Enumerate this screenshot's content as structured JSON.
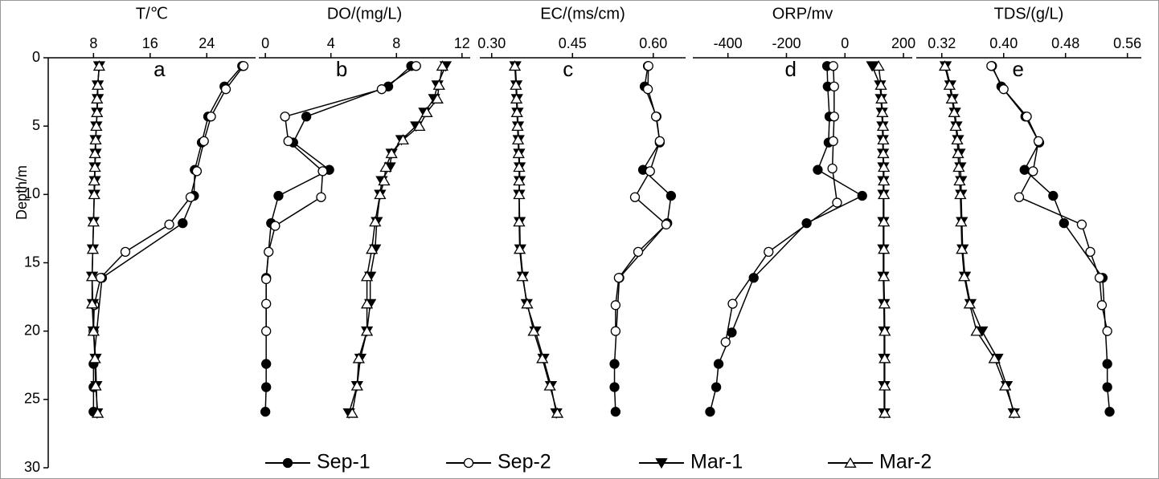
{
  "chart_data": [
    {
      "type": "line",
      "title": "T/℃",
      "annotation": "a",
      "xlim": [
        1.6,
        30.9
      ],
      "xticks": [
        8,
        16,
        24
      ],
      "ylabel": "Depth/m",
      "ylim": [
        0,
        30
      ],
      "yticks": [
        0,
        5,
        10,
        15,
        20,
        25,
        30
      ],
      "invert_y": true,
      "series": [
        {
          "name": "Sep-1",
          "color": "#000000",
          "marker": "filled-circle",
          "depths": [
            0.6,
            2.1,
            4.3,
            6.2,
            8.2,
            10.1,
            12.1,
            16.1,
            22.4,
            24.1,
            25.9
          ],
          "values": [
            29,
            26.5,
            24.2,
            23.3,
            22.3,
            22.2,
            20.6,
            9.2,
            8,
            8,
            8
          ]
        },
        {
          "name": "Sep-2",
          "color": "#000000",
          "marker": "open-circle",
          "depths": [
            0.6,
            2.3,
            4.3,
            6.1,
            8.3,
            10.2,
            12.2,
            14.2,
            16.1,
            18.1,
            20
          ],
          "values": [
            29.2,
            26.7,
            24.6,
            23.6,
            22.6,
            21.7,
            18.7,
            12.5,
            9,
            8.1,
            8
          ]
        },
        {
          "name": "Mar-1",
          "color": "#000000",
          "marker": "filled-triangle-down",
          "depths": [
            0.6,
            2,
            3,
            4,
            5,
            6,
            7,
            8,
            9,
            10,
            12,
            14,
            16,
            18,
            20,
            22,
            24,
            26
          ],
          "values": [
            8.8,
            8.6,
            8.6,
            8.5,
            8.4,
            8.3,
            8.3,
            8.2,
            8.2,
            8.1,
            8,
            7.9,
            7.8,
            7.9,
            8,
            8.3,
            8.4,
            8.5
          ]
        },
        {
          "name": "Mar-2",
          "color": "#000000",
          "marker": "open-triangle-up",
          "depths": [
            0.6,
            2,
            3,
            4,
            5,
            6,
            7,
            8,
            9,
            10,
            12,
            14,
            16,
            18,
            20,
            22,
            24,
            26
          ],
          "values": [
            8.8,
            8.6,
            8.5,
            8.5,
            8.4,
            8.3,
            8.2,
            8.2,
            8.1,
            8.1,
            8,
            7.9,
            7.8,
            7.8,
            8,
            8.2,
            8.3,
            8.6
          ]
        }
      ]
    },
    {
      "type": "line",
      "title": "DO/(mg/L)",
      "annotation": "b",
      "xlim": [
        -0.4,
        12.5
      ],
      "xticks": [
        0,
        4,
        8,
        12
      ],
      "ylim": [
        0,
        30
      ],
      "invert_y": true,
      "series": [
        {
          "name": "Sep-1",
          "color": "#000000",
          "marker": "filled-circle",
          "depths": [
            0.6,
            2.1,
            4.3,
            6.2,
            8.2,
            10.1,
            12.1,
            16.1,
            22.4,
            24.1,
            25.9
          ],
          "values": [
            8.9,
            7.5,
            2.5,
            1.7,
            3.9,
            0.8,
            0.35,
            0.05,
            0.05,
            0.05,
            0
          ]
        },
        {
          "name": "Sep-2",
          "color": "#000000",
          "marker": "open-circle",
          "depths": [
            0.6,
            2.3,
            4.3,
            6.1,
            8.3,
            10.2,
            12.3,
            14.2,
            16.2,
            18,
            20
          ],
          "values": [
            9.2,
            7.1,
            1.2,
            1.4,
            3.5,
            3.4,
            0.6,
            0.2,
            0.05,
            0.05,
            0.05
          ]
        },
        {
          "name": "Mar-1",
          "color": "#000000",
          "marker": "filled-triangle-down",
          "depths": [
            0.6,
            2,
            3,
            4,
            5,
            6,
            7,
            8,
            9,
            10,
            12,
            14,
            16,
            18,
            20,
            22,
            24,
            26
          ],
          "values": [
            11,
            10.5,
            10.3,
            9.7,
            9.2,
            8.3,
            7.7,
            7.6,
            7.1,
            7,
            6.8,
            6.7,
            6.4,
            6.4,
            6.2,
            5.8,
            5.6,
            5.1
          ]
        },
        {
          "name": "Mar-2",
          "color": "#000000",
          "marker": "open-triangle-up",
          "depths": [
            0.6,
            2,
            3,
            4,
            5,
            6,
            7,
            8,
            9,
            10,
            12,
            14,
            16,
            18,
            20,
            22,
            24,
            26
          ],
          "values": [
            10.8,
            10.6,
            10.5,
            9.85,
            9.4,
            8.4,
            7.7,
            7.35,
            7.25,
            7,
            6.7,
            6.5,
            6.2,
            6.2,
            6.2,
            5.7,
            5.6,
            5.3
          ]
        }
      ]
    },
    {
      "type": "line",
      "title": "EC/(ms/cm)",
      "annotation": "c",
      "xlim": [
        0.278,
        0.66
      ],
      "xticks": [
        {
          "value": 0.3,
          "label": "0.30"
        },
        {
          "value": 0.45,
          "label": "0.45"
        },
        {
          "value": 0.6,
          "label": "0.60"
        }
      ],
      "ylim": [
        0,
        30
      ],
      "invert_y": true,
      "series": [
        {
          "name": "Sep-1",
          "color": "#000000",
          "marker": "filled-circle",
          "depths": [
            0.6,
            2.1,
            4.3,
            6.2,
            8.2,
            10.1,
            12.1,
            16.1,
            22.4,
            24.1,
            25.9
          ],
          "values": [
            0.59,
            0.584,
            0.606,
            0.612,
            0.581,
            0.633,
            0.626,
            0.537,
            0.528,
            0.528,
            0.53
          ]
        },
        {
          "name": "Sep-2",
          "color": "#000000",
          "marker": "open-circle",
          "depths": [
            0.6,
            2.3,
            4.3,
            6.1,
            8.3,
            10.2,
            12.2,
            14.2,
            16.1,
            18.1,
            20
          ],
          "values": [
            0.591,
            0.59,
            0.605,
            0.612,
            0.594,
            0.566,
            0.624,
            0.572,
            0.536,
            0.53,
            0.53
          ]
        },
        {
          "name": "Mar-1",
          "color": "#000000",
          "marker": "filled-triangle-down",
          "depths": [
            0.6,
            2,
            3,
            4,
            5,
            6,
            7,
            8,
            9,
            10,
            12,
            14,
            16,
            18,
            20,
            22,
            24,
            26
          ],
          "values": [
            0.344,
            0.346,
            0.347,
            0.348,
            0.349,
            0.35,
            0.351,
            0.352,
            0.352,
            0.351,
            0.352,
            0.353,
            0.358,
            0.365,
            0.381,
            0.396,
            0.41,
            0.42
          ]
        },
        {
          "name": "Mar-2",
          "color": "#000000",
          "marker": "open-triangle-up",
          "depths": [
            0.6,
            2,
            3,
            4,
            5,
            6,
            7,
            8,
            9,
            10,
            12,
            14,
            16,
            18,
            20,
            22,
            24,
            26
          ],
          "values": [
            0.343,
            0.345,
            0.346,
            0.347,
            0.348,
            0.349,
            0.35,
            0.351,
            0.351,
            0.351,
            0.351,
            0.352,
            0.357,
            0.366,
            0.378,
            0.394,
            0.408,
            0.422
          ]
        }
      ]
    },
    {
      "type": "line",
      "title": "ORP/mv",
      "annotation": "d",
      "xlim": [
        -520,
        230
      ],
      "xticks": [
        -400,
        -200,
        0,
        200
      ],
      "ylim": [
        0,
        30
      ],
      "invert_y": true,
      "series": [
        {
          "name": "Sep-1",
          "color": "#000000",
          "marker": "filled-circle",
          "depths": [
            0.6,
            2.1,
            4.3,
            6.2,
            8.2,
            10.1,
            12.1,
            16.1,
            20.1,
            22.4,
            24.1,
            25.9
          ],
          "values": [
            -61,
            -59,
            -53,
            -56,
            -93,
            59,
            -131,
            -312,
            -387,
            -432,
            -440,
            -461
          ]
        },
        {
          "name": "Sep-2",
          "color": "#000000",
          "marker": "open-circle",
          "depths": [
            0.6,
            2.1,
            4.3,
            6.1,
            8.1,
            10.6,
            14.2,
            18,
            20.8
          ],
          "values": [
            -40,
            -37,
            -37,
            -40,
            -43,
            -27,
            -261,
            -384,
            -408
          ]
        },
        {
          "name": "Mar-1",
          "color": "#000000",
          "marker": "filled-triangle-down",
          "depths": [
            0.6,
            2,
            3,
            4,
            5,
            6,
            7,
            8,
            9,
            10,
            12,
            14,
            16,
            18,
            20,
            22,
            24,
            26
          ],
          "values": [
            93,
            120,
            123,
            126,
            128,
            129,
            130,
            131,
            131,
            131,
            131,
            131,
            131,
            133,
            134,
            134,
            134,
            134
          ]
        },
        {
          "name": "Mar-2",
          "color": "#000000",
          "marker": "open-triangle-up",
          "depths": [
            0.6,
            2,
            3,
            4,
            5,
            6,
            7,
            8,
            9,
            10,
            12,
            14,
            16,
            18,
            20,
            22,
            24,
            26
          ],
          "values": [
            115,
            123,
            125,
            128,
            130,
            131,
            131,
            133,
            133,
            133,
            133,
            133,
            133,
            135,
            136,
            136,
            136,
            136
          ]
        }
      ]
    },
    {
      "type": "line",
      "title": "TDS/(g/L)",
      "annotation": "e",
      "xlim": [
        0.287,
        0.578
      ],
      "xticks": [
        0.32,
        {
          "value": 0.4,
          "label": "0.40"
        },
        0.48,
        0.56
      ],
      "ylim": [
        0,
        30
      ],
      "invert_y": true,
      "series": [
        {
          "name": "Sep-1",
          "color": "#000000",
          "marker": "filled-circle",
          "depths": [
            0.6,
            2.1,
            4.3,
            6.2,
            8.2,
            10.1,
            12.1,
            16.1,
            22.4,
            24.1,
            25.9
          ],
          "values": [
            0.385,
            0.397,
            0.428,
            0.446,
            0.427,
            0.464,
            0.478,
            0.528,
            0.534,
            0.534,
            0.537
          ]
        },
        {
          "name": "Sep-2",
          "color": "#000000",
          "marker": "open-circle",
          "depths": [
            0.6,
            2.3,
            4.3,
            6.1,
            8.3,
            10.2,
            12.2,
            14.2,
            16.1,
            18.1,
            20
          ],
          "values": [
            0.384,
            0.4,
            0.43,
            0.445,
            0.438,
            0.42,
            0.501,
            0.512,
            0.524,
            0.527,
            0.534
          ]
        },
        {
          "name": "Mar-1",
          "color": "#000000",
          "marker": "filled-triangle-down",
          "depths": [
            0.6,
            2,
            3,
            4,
            5,
            6,
            7,
            8,
            9,
            10,
            12,
            14,
            16,
            18,
            20,
            22,
            24,
            26
          ],
          "values": [
            0.325,
            0.331,
            0.334,
            0.337,
            0.339,
            0.341,
            0.343,
            0.344,
            0.345,
            0.345,
            0.346,
            0.347,
            0.35,
            0.357,
            0.372,
            0.392,
            0.404,
            0.413
          ]
        },
        {
          "name": "Mar-2",
          "color": "#000000",
          "marker": "open-triangle-up",
          "depths": [
            0.6,
            2,
            3,
            4,
            5,
            6,
            7,
            8,
            9,
            10,
            12,
            14,
            16,
            18,
            20,
            22,
            24,
            26
          ],
          "values": [
            0.324,
            0.33,
            0.333,
            0.336,
            0.338,
            0.34,
            0.341,
            0.342,
            0.343,
            0.344,
            0.345,
            0.346,
            0.349,
            0.356,
            0.365,
            0.388,
            0.402,
            0.414
          ]
        }
      ]
    }
  ]
}
